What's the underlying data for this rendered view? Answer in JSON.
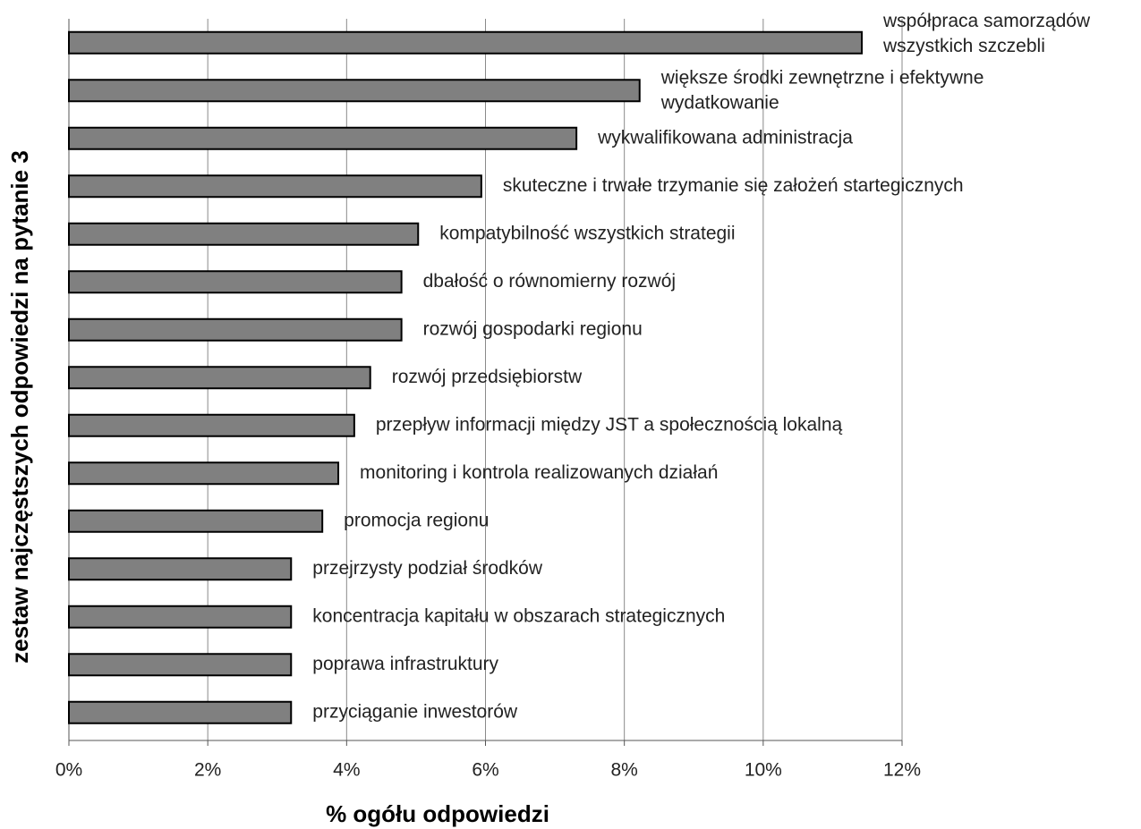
{
  "chart_data": {
    "type": "bar",
    "orientation": "horizontal",
    "xlabel": "% ogółu odpowiedzi",
    "ylabel": "zestaw najczęstszych odpowiedzi na pytanie 3",
    "categories": [
      "współpraca samorządów\nwszystkich szczebli",
      "większe środki zewnętrzne i efektywne\nwydatkowanie",
      "wykwalifikowana administracja",
      "skuteczne i trwałe trzymanie się założeń startegicznych",
      "kompatybilność wszystkich strategii",
      "dbałość o równomierny rozwój",
      "rozwój gospodarki regionu",
      "rozwój przedsiębiorstw",
      "przepływ informacji między JST a społecznością lokalną",
      "monitoring i kontrola realizowanych działań",
      "promocja regionu",
      "przejrzysty podział środków",
      "koncentracja kapitału w obszarach strategicznych",
      "poprawa infrastruktury",
      "przyciąganie inwestorów"
    ],
    "values": [
      11.42,
      8.22,
      7.31,
      5.94,
      5.03,
      4.79,
      4.79,
      4.34,
      4.11,
      3.88,
      3.65,
      3.2,
      3.2,
      3.2,
      3.2
    ],
    "color": "#808080",
    "xlim": [
      0,
      12
    ],
    "xticks": [
      {
        "value": 0,
        "label": "0%"
      },
      {
        "value": 2,
        "label": "2%"
      },
      {
        "value": 4,
        "label": "4%"
      },
      {
        "value": 6,
        "label": "6%"
      },
      {
        "value": 8,
        "label": "8%"
      },
      {
        "value": 10,
        "label": "10%"
      },
      {
        "value": 12,
        "label": "12%"
      }
    ],
    "grid": true
  }
}
